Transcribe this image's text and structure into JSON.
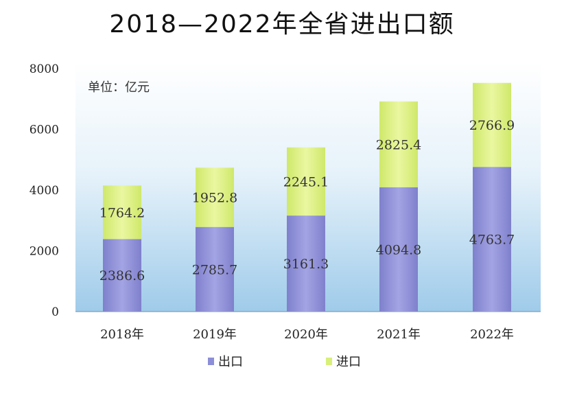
{
  "chart_data": {
    "type": "bar",
    "stacked": true,
    "title": "2018—2022年全省进出口额",
    "unit_label": "单位：亿元",
    "categories": [
      "2018年",
      "2019年",
      "2020年",
      "2021年",
      "2022年"
    ],
    "series": [
      {
        "name": "出口",
        "color": "#8d8ed8",
        "values": [
          2386.6,
          2785.7,
          3161.3,
          4094.8,
          4763.7
        ]
      },
      {
        "name": "进口",
        "color": "#d8f07a",
        "values": [
          1764.2,
          1952.8,
          2245.1,
          2825.4,
          2766.9
        ]
      }
    ],
    "yticks": [
      "0",
      "2000",
      "4000",
      "6000",
      "8000"
    ],
    "ylim": [
      0,
      8000
    ],
    "grid": false,
    "legend": "bottom-center"
  }
}
